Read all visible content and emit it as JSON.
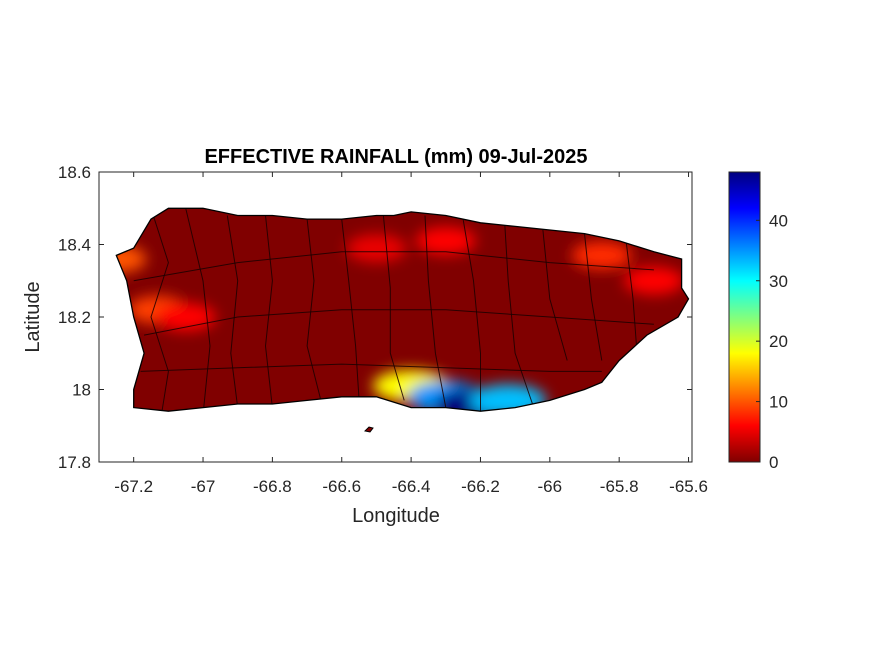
{
  "chart_data": {
    "type": "heatmap",
    "title": "EFFECTIVE RAINFALL (mm) 09-Jul-2025",
    "xlabel": "Longitude",
    "ylabel": "Latitude",
    "xlim": [
      -67.3,
      -65.59
    ],
    "ylim": [
      17.8,
      18.6
    ],
    "x_ticks": [
      "-67.2",
      "-67",
      "-66.8",
      "-66.6",
      "-66.4",
      "-66.2",
      "-66",
      "-65.8",
      "-65.6"
    ],
    "x_tick_values": [
      -67.2,
      -67.0,
      -66.8,
      -66.6,
      -66.4,
      -66.2,
      -66.0,
      -65.8,
      -65.6
    ],
    "y_ticks": [
      "18.6",
      "18.4",
      "18.2",
      "18"
    ],
    "y_tick_values": [
      18.6,
      18.4,
      18.2,
      18.0
    ],
    "y_tick_extra": "17.8",
    "colorbar": {
      "min": 0,
      "max": 48,
      "ticks": [
        "0",
        "10",
        "20",
        "30",
        "40"
      ],
      "tick_values": [
        0,
        10,
        20,
        30,
        40
      ],
      "colormap": "jet-reversed"
    },
    "land_outline": [
      [
        -67.25,
        18.37
      ],
      [
        -67.2,
        18.39
      ],
      [
        -67.15,
        18.47
      ],
      [
        -67.1,
        18.5
      ],
      [
        -67.0,
        18.5
      ],
      [
        -66.9,
        18.48
      ],
      [
        -66.8,
        18.48
      ],
      [
        -66.7,
        18.47
      ],
      [
        -66.6,
        18.47
      ],
      [
        -66.5,
        18.48
      ],
      [
        -66.45,
        18.48
      ],
      [
        -66.4,
        18.49
      ],
      [
        -66.3,
        18.48
      ],
      [
        -66.2,
        18.46
      ],
      [
        -66.1,
        18.45
      ],
      [
        -66.0,
        18.44
      ],
      [
        -65.9,
        18.43
      ],
      [
        -65.8,
        18.41
      ],
      [
        -65.7,
        18.38
      ],
      [
        -65.62,
        18.36
      ],
      [
        -65.62,
        18.28
      ],
      [
        -65.6,
        18.25
      ],
      [
        -65.63,
        18.2
      ],
      [
        -65.72,
        18.15
      ],
      [
        -65.8,
        18.08
      ],
      [
        -65.85,
        18.02
      ],
      [
        -65.9,
        18.0
      ],
      [
        -66.0,
        17.97
      ],
      [
        -66.1,
        17.95
      ],
      [
        -66.2,
        17.94
      ],
      [
        -66.3,
        17.95
      ],
      [
        -66.4,
        17.95
      ],
      [
        -66.5,
        17.98
      ],
      [
        -66.6,
        17.98
      ],
      [
        -66.7,
        17.97
      ],
      [
        -66.8,
        17.96
      ],
      [
        -66.9,
        17.96
      ],
      [
        -67.0,
        17.95
      ],
      [
        -67.1,
        17.94
      ],
      [
        -67.2,
        17.95
      ],
      [
        -67.2,
        18.0
      ],
      [
        -67.17,
        18.1
      ],
      [
        -67.2,
        18.2
      ],
      [
        -67.22,
        18.3
      ]
    ],
    "rain_hotspots": [
      {
        "lon": -67.25,
        "lat": 18.36,
        "value": 10
      },
      {
        "lon": -67.13,
        "lat": 18.22,
        "value": 9
      },
      {
        "lon": -67.05,
        "lat": 18.2,
        "value": 6
      },
      {
        "lon": -66.5,
        "lat": 18.39,
        "value": 5
      },
      {
        "lon": -66.3,
        "lat": 18.41,
        "value": 6
      },
      {
        "lon": -65.85,
        "lat": 18.37,
        "value": 8
      },
      {
        "lon": -65.7,
        "lat": 18.3,
        "value": 6
      },
      {
        "lon": -66.4,
        "lat": 18.01,
        "value": 18
      },
      {
        "lon": -66.3,
        "lat": 17.98,
        "value": 35
      },
      {
        "lon": -66.22,
        "lat": 17.96,
        "value": 48
      },
      {
        "lon": -66.12,
        "lat": 17.97,
        "value": 33
      }
    ]
  }
}
